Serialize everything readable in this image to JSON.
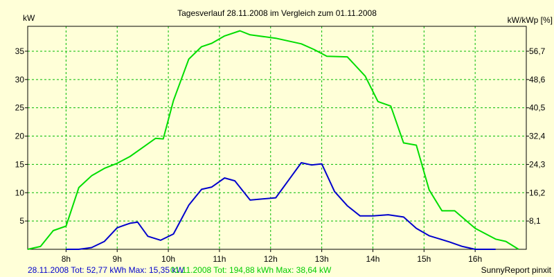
{
  "chart_data": {
    "type": "line",
    "title": "Tagesverlauf 28.11.2008 im Vergleich zum 01.11.2008",
    "ylabel_left": "kW",
    "ylabel_right": "kW/kWp [%]",
    "x_range_hours": [
      7.25,
      17.0
    ],
    "x_ticks": [
      8,
      9,
      10,
      11,
      12,
      13,
      14,
      15,
      16
    ],
    "x_tick_labels": [
      "8h",
      "9h",
      "10h",
      "11h",
      "12h",
      "13h",
      "14h",
      "15h",
      "16h"
    ],
    "y_range": [
      0,
      39.4
    ],
    "y_ticks": [
      5,
      10,
      15,
      20,
      25,
      30,
      35
    ],
    "y_tick_labels": [
      "5",
      "10",
      "15",
      "20",
      "25",
      "30",
      "35"
    ],
    "y_right_ticks": [
      5,
      10,
      15,
      20,
      25,
      30,
      35
    ],
    "y_right_tick_labels": [
      "8,1",
      "16,2",
      "24,3",
      "32,4",
      "40,5",
      "48,6",
      "56,7"
    ],
    "grid": true,
    "series": [
      {
        "name": "28.11.2008",
        "color": "#0000cc",
        "x": [
          8.0,
          8.25,
          8.5,
          8.75,
          9.0,
          9.15,
          9.25,
          9.4,
          9.6,
          9.85,
          10.1,
          10.4,
          10.65,
          10.85,
          11.1,
          11.3,
          11.6,
          12.1,
          12.6,
          12.8,
          13.0,
          13.25,
          13.5,
          13.75,
          14.0,
          14.3,
          14.6,
          14.85,
          15.1,
          15.5,
          15.75,
          16.0,
          16.4
        ],
        "y": [
          0,
          0,
          0.3,
          1.4,
          3.8,
          4.3,
          4.6,
          4.8,
          2.3,
          1.6,
          2.7,
          7.8,
          10.6,
          11.0,
          12.6,
          12.1,
          8.7,
          9.1,
          15.3,
          14.9,
          15.1,
          10.2,
          7.7,
          5.9,
          5.9,
          6.1,
          5.7,
          3.7,
          2.4,
          1.3,
          0.5,
          0,
          0
        ]
      },
      {
        "name": "01.11.2008",
        "color": "#00dd00",
        "x": [
          7.25,
          7.5,
          7.75,
          8.0,
          8.25,
          8.5,
          8.75,
          9.0,
          9.25,
          9.5,
          9.75,
          9.9,
          10.1,
          10.4,
          10.65,
          10.85,
          11.1,
          11.4,
          11.6,
          12.1,
          12.6,
          12.85,
          13.1,
          13.5,
          13.85,
          14.1,
          14.35,
          14.6,
          14.85,
          15.1,
          15.35,
          15.6,
          16.0,
          16.4,
          16.6,
          16.85
        ],
        "y": [
          0,
          0.5,
          3.3,
          4.1,
          10.9,
          13.0,
          14.3,
          15.2,
          16.4,
          18.0,
          19.6,
          19.5,
          26.3,
          33.6,
          35.8,
          36.4,
          37.7,
          38.6,
          37.9,
          37.3,
          36.3,
          35.3,
          34.1,
          34.0,
          30.6,
          26.1,
          25.3,
          18.8,
          18.4,
          10.5,
          6.8,
          6.8,
          3.7,
          1.8,
          1.4,
          0
        ]
      }
    ],
    "legend": "bottom-left"
  },
  "footer": {
    "text_series1": "28.11.2008 Tot: 52,77 kWh Max: 15,35 kW",
    "text_series2": "01.11.2008 Tot: 194,88 kWh Max: 38,64 kW",
    "brand": "SunnyReport pinxit"
  }
}
